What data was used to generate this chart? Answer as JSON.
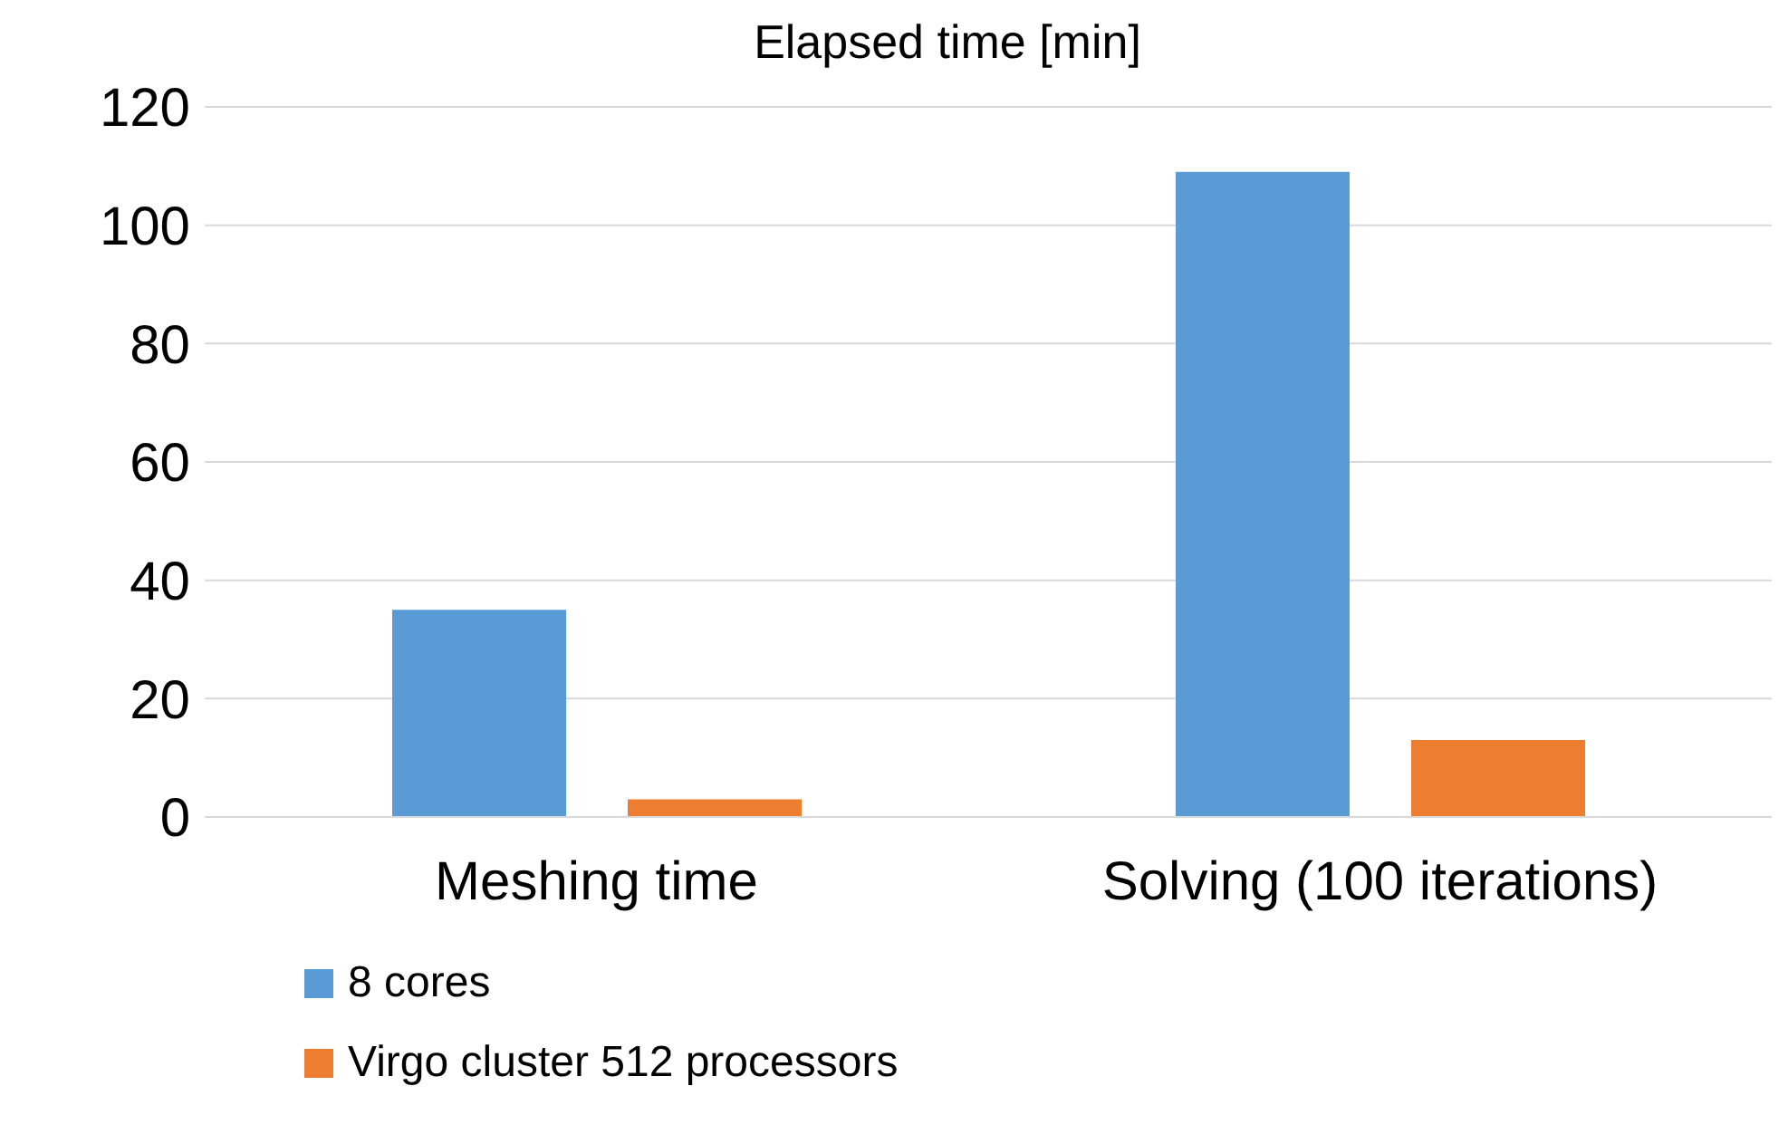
{
  "chart_data": {
    "type": "bar",
    "title": "Elapsed time [min]",
    "categories": [
      "Meshing time",
      "Solving (100 iterations)"
    ],
    "series": [
      {
        "name": "8 cores",
        "color": "#5b9bd5",
        "values": [
          35,
          109
        ]
      },
      {
        "name": "Virgo cluster 512 processors",
        "color": "#ed7d31",
        "values": [
          3,
          13
        ]
      }
    ],
    "ylim": [
      0,
      120
    ],
    "yticks": [
      0,
      20,
      40,
      60,
      80,
      100,
      120
    ],
    "grid": "y",
    "legend": "bottom"
  }
}
